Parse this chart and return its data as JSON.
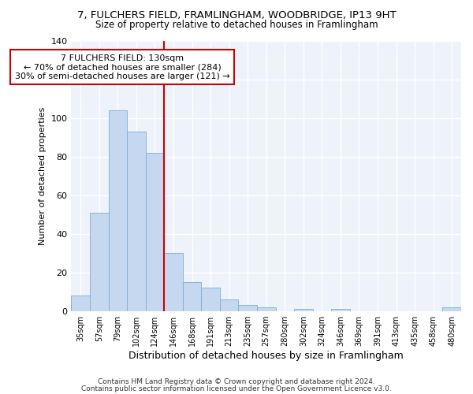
{
  "title1": "7, FULCHERS FIELD, FRAMLINGHAM, WOODBRIDGE, IP13 9HT",
  "title2": "Size of property relative to detached houses in Framlingham",
  "xlabel": "Distribution of detached houses by size in Framlingham",
  "ylabel": "Number of detached properties",
  "categories": [
    "35sqm",
    "57sqm",
    "79sqm",
    "102sqm",
    "124sqm",
    "146sqm",
    "168sqm",
    "191sqm",
    "213sqm",
    "235sqm",
    "257sqm",
    "280sqm",
    "302sqm",
    "324sqm",
    "346sqm",
    "369sqm",
    "391sqm",
    "413sqm",
    "435sqm",
    "458sqm",
    "480sqm"
  ],
  "values": [
    8,
    51,
    104,
    93,
    82,
    30,
    15,
    12,
    6,
    3,
    2,
    0,
    1,
    0,
    1,
    0,
    0,
    0,
    0,
    0,
    2
  ],
  "bar_color": "#c5d8f0",
  "bar_edge_color": "#7aafd4",
  "property_label": "7 FULCHERS FIELD: 130sqm",
  "annotation_line1": "← 70% of detached houses are smaller (284)",
  "annotation_line2": "30% of semi-detached houses are larger (121) →",
  "vline_color": "#cc0000",
  "annotation_box_color": "#cc0000",
  "vline_x": 4.5,
  "ylim": [
    0,
    140
  ],
  "footer1": "Contains HM Land Registry data © Crown copyright and database right 2024.",
  "footer2": "Contains public sector information licensed under the Open Government Licence v3.0.",
  "background_color": "#ffffff",
  "plot_bg_color": "#eef2fb",
  "grid_color": "#ffffff"
}
